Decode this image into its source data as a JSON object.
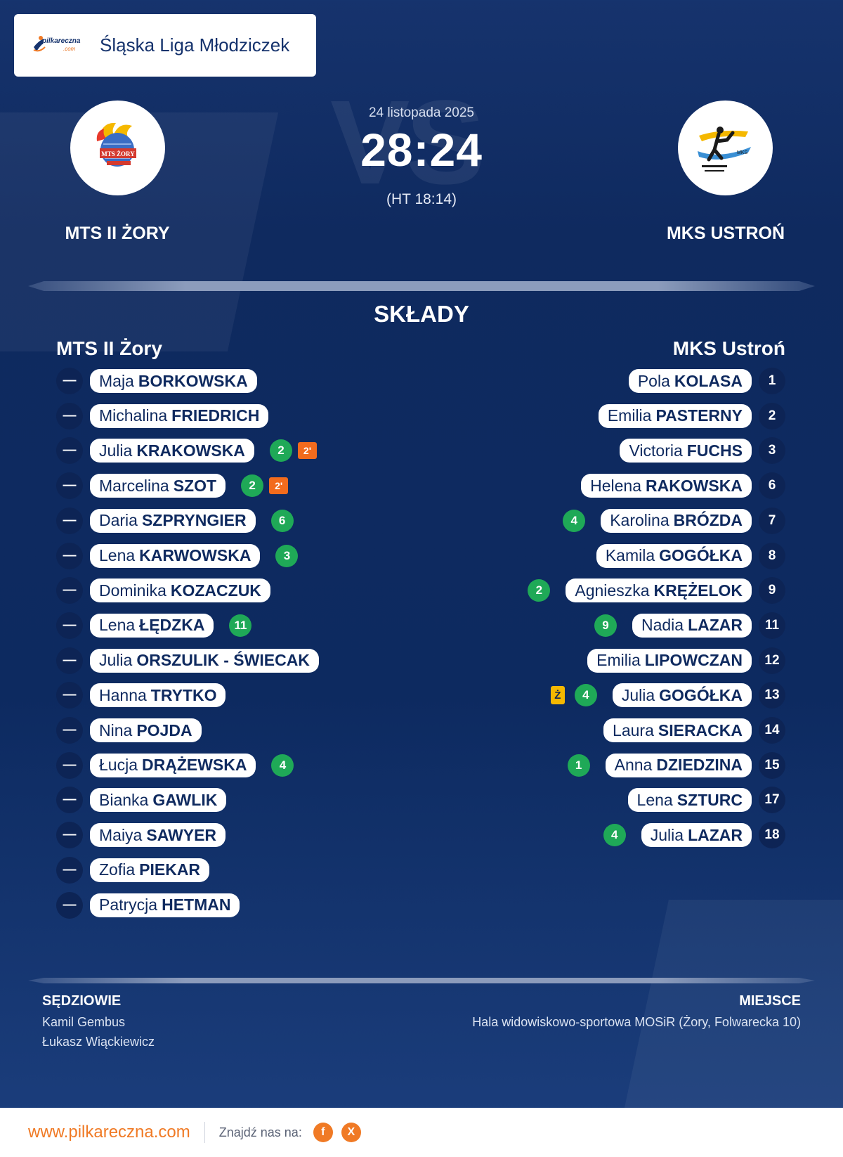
{
  "header": {
    "logo_text": "pilkareczna",
    "logo_sub": ".com",
    "league": "Śląska Liga Młodziczek"
  },
  "match": {
    "vs_bg": "VS",
    "date": "24 listopada 2025",
    "score": "28:24",
    "ht": "(HT 18:14)",
    "home_name": "MTS II ŻORY",
    "away_name": "MKS USTROŃ"
  },
  "lineups": {
    "title": "SKŁADY",
    "home_title": "MTS II Żory",
    "away_title": "MKS Ustroń",
    "home": [
      {
        "num": "—",
        "first": "Maja",
        "last": "BORKOWSKA",
        "goals": "",
        "penalty": ""
      },
      {
        "num": "—",
        "first": "Michalina",
        "last": "FRIEDRICH",
        "goals": "",
        "penalty": ""
      },
      {
        "num": "—",
        "first": "Julia",
        "last": "KRAKOWSKA",
        "goals": "2",
        "penalty": "2'"
      },
      {
        "num": "—",
        "first": "Marcelina",
        "last": "SZOT",
        "goals": "2",
        "penalty": "2'"
      },
      {
        "num": "—",
        "first": "Daria",
        "last": "SZPRYNGIER",
        "goals": "6",
        "penalty": ""
      },
      {
        "num": "—",
        "first": "Lena",
        "last": "KARWOWSKA",
        "goals": "3",
        "penalty": ""
      },
      {
        "num": "—",
        "first": "Dominika",
        "last": "KOZACZUK",
        "goals": "",
        "penalty": ""
      },
      {
        "num": "—",
        "first": "Lena",
        "last": "ŁĘDZKA",
        "goals": "11",
        "penalty": ""
      },
      {
        "num": "—",
        "first": "Julia",
        "last": "ORSZULIK - ŚWIECAK",
        "goals": "",
        "penalty": ""
      },
      {
        "num": "—",
        "first": "Hanna",
        "last": "TRYTKO",
        "goals": "",
        "penalty": ""
      },
      {
        "num": "—",
        "first": "Nina",
        "last": "POJDA",
        "goals": "",
        "penalty": ""
      },
      {
        "num": "—",
        "first": "Łucja",
        "last": "DRĄŻEWSKA",
        "goals": "4",
        "penalty": ""
      },
      {
        "num": "—",
        "first": "Bianka",
        "last": "GAWLIK",
        "goals": "",
        "penalty": ""
      },
      {
        "num": "—",
        "first": "Maiya",
        "last": "SAWYER",
        "goals": "",
        "penalty": ""
      },
      {
        "num": "—",
        "first": "Zofia",
        "last": "PIEKAR",
        "goals": "",
        "penalty": ""
      },
      {
        "num": "—",
        "first": "Patrycja",
        "last": "HETMAN",
        "goals": "",
        "penalty": ""
      }
    ],
    "away": [
      {
        "num": "1",
        "first": "Pola",
        "last": "KOLASA",
        "goals": "",
        "card": ""
      },
      {
        "num": "2",
        "first": "Emilia",
        "last": "PASTERNY",
        "goals": "",
        "card": ""
      },
      {
        "num": "3",
        "first": "Victoria",
        "last": "FUCHS",
        "goals": "",
        "card": ""
      },
      {
        "num": "6",
        "first": "Helena",
        "last": "RAKOWSKA",
        "goals": "",
        "card": ""
      },
      {
        "num": "7",
        "first": "Karolina",
        "last": "BRÓZDA",
        "goals": "4",
        "card": ""
      },
      {
        "num": "8",
        "first": "Kamila",
        "last": "GOGÓŁKA",
        "goals": "",
        "card": ""
      },
      {
        "num": "9",
        "first": "Agnieszka",
        "last": "KRĘŻELOK",
        "goals": "2",
        "card": ""
      },
      {
        "num": "11",
        "first": "Nadia",
        "last": "LAZAR",
        "goals": "9",
        "card": ""
      },
      {
        "num": "12",
        "first": "Emilia",
        "last": "LIPOWCZAN",
        "goals": "",
        "card": ""
      },
      {
        "num": "13",
        "first": "Julia",
        "last": "GOGÓŁKA",
        "goals": "4",
        "card": "Ż"
      },
      {
        "num": "14",
        "first": "Laura",
        "last": "SIERACKA",
        "goals": "",
        "card": ""
      },
      {
        "num": "15",
        "first": "Anna",
        "last": "DZIEDZINA",
        "goals": "1",
        "card": ""
      },
      {
        "num": "17",
        "first": "Lena",
        "last": "SZTURC",
        "goals": "",
        "card": ""
      },
      {
        "num": "18",
        "first": "Julia",
        "last": "LAZAR",
        "goals": "4",
        "card": ""
      }
    ]
  },
  "officials": {
    "referees_title": "SĘDZIOWIE",
    "referees": [
      "Kamil Gembus",
      "Łukasz Wiąckiewicz"
    ],
    "venue_title": "MIEJSCE",
    "venue": "Hala widowiskowo-sportowa MOSiR (Żory, Folwarecka 10)"
  },
  "footer": {
    "url": "www.pilkareczna.com",
    "find_us": "Znajdź nas na:",
    "facebook": "f",
    "x": "X"
  },
  "colors": {
    "background": "#0f2a5f",
    "goal": "#1fa957",
    "penalty": "#f26b1d",
    "yellow_card": "#f5b800",
    "accent": "#f07a25"
  }
}
